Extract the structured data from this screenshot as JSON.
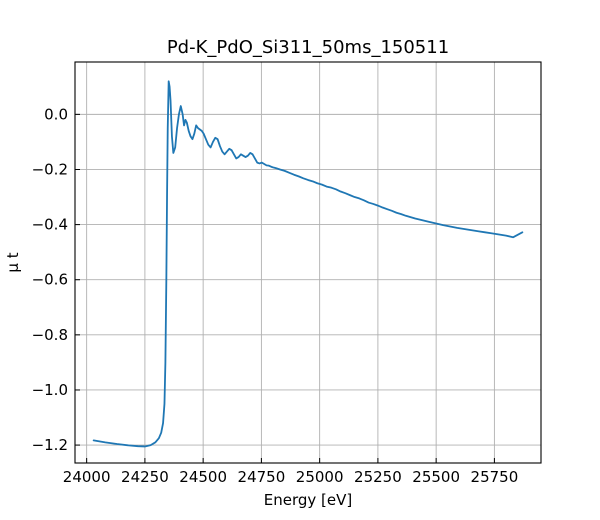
{
  "chart_data": {
    "type": "line",
    "title": "Pd-K_PdO_Si311_50ms_150511",
    "xlabel": "Energy [eV]",
    "ylabel": "μ t",
    "xlim": [
      23950,
      25950
    ],
    "ylim": [
      -1.265,
      0.19
    ],
    "x_ticks": [
      24000,
      24250,
      24500,
      24750,
      25000,
      25250,
      25500,
      25750
    ],
    "x_tick_labels": [
      "24000",
      "24250",
      "24500",
      "24750",
      "25000",
      "25250",
      "25500",
      "25750"
    ],
    "y_ticks": [
      0.0,
      -0.2,
      -0.4,
      -0.6,
      -0.8,
      -1.0,
      -1.2
    ],
    "y_tick_labels": [
      "0.0",
      "−0.2",
      "−0.4",
      "−0.6",
      "−0.8",
      "−1.0",
      "−1.2"
    ],
    "grid": true,
    "color": "#1f77b4",
    "series": [
      {
        "x": [
          24030,
          24080,
          24130,
          24180,
          24220,
          24250,
          24275,
          24295,
          24310,
          24320,
          24328,
          24334,
          24338,
          24342,
          24345,
          24348,
          24352,
          24356,
          24360,
          24366,
          24372,
          24380,
          24388,
          24396,
          24404,
          24412,
          24418,
          24424,
          24430,
          24438,
          24446,
          24454,
          24462,
          24470,
          24478,
          24486,
          24494,
          24502,
          24512,
          24522,
          24532,
          24542,
          24552,
          24562,
          24572,
          24582,
          24592,
          24602,
          24612,
          24622,
          24632,
          24642,
          24652,
          24662,
          24672,
          24682,
          24692,
          24702,
          24712,
          24722,
          24732,
          24742,
          24752,
          24762,
          24772,
          24782,
          24792,
          24802,
          24812,
          24830,
          24850,
          24870,
          24890,
          24910,
          24930,
          24950,
          24970,
          24990,
          25010,
          25030,
          25050,
          25070,
          25090,
          25110,
          25130,
          25150,
          25170,
          25190,
          25210,
          25230,
          25250,
          25270,
          25290,
          25310,
          25330,
          25350,
          25370,
          25390,
          25410,
          25430,
          25450,
          25470,
          25500,
          25530,
          25560,
          25590,
          25620,
          25650,
          25680,
          25710,
          25740,
          25770,
          25800,
          25830,
          25870
        ],
        "y": [
          -1.183,
          -1.19,
          -1.196,
          -1.201,
          -1.204,
          -1.205,
          -1.2,
          -1.19,
          -1.175,
          -1.155,
          -1.12,
          -1.05,
          -0.9,
          -0.6,
          -0.3,
          -0.05,
          0.12,
          0.1,
          0.05,
          -0.08,
          -0.14,
          -0.12,
          -0.05,
          0.0,
          0.03,
          0.0,
          -0.04,
          -0.02,
          -0.03,
          -0.06,
          -0.08,
          -0.09,
          -0.07,
          -0.04,
          -0.05,
          -0.055,
          -0.06,
          -0.07,
          -0.09,
          -0.11,
          -0.12,
          -0.1,
          -0.085,
          -0.09,
          -0.115,
          -0.135,
          -0.145,
          -0.135,
          -0.125,
          -0.13,
          -0.145,
          -0.16,
          -0.155,
          -0.145,
          -0.15,
          -0.155,
          -0.15,
          -0.14,
          -0.145,
          -0.16,
          -0.175,
          -0.178,
          -0.175,
          -0.18,
          -0.185,
          -0.186,
          -0.19,
          -0.193,
          -0.195,
          -0.2,
          -0.205,
          -0.212,
          -0.219,
          -0.225,
          -0.232,
          -0.238,
          -0.243,
          -0.25,
          -0.255,
          -0.262,
          -0.266,
          -0.272,
          -0.28,
          -0.286,
          -0.293,
          -0.3,
          -0.305,
          -0.312,
          -0.32,
          -0.325,
          -0.331,
          -0.338,
          -0.344,
          -0.35,
          -0.357,
          -0.362,
          -0.368,
          -0.373,
          -0.378,
          -0.382,
          -0.386,
          -0.39,
          -0.396,
          -0.402,
          -0.407,
          -0.412,
          -0.416,
          -0.42,
          -0.424,
          -0.428,
          -0.432,
          -0.436,
          -0.44,
          -0.446,
          -0.428
        ]
      }
    ]
  }
}
